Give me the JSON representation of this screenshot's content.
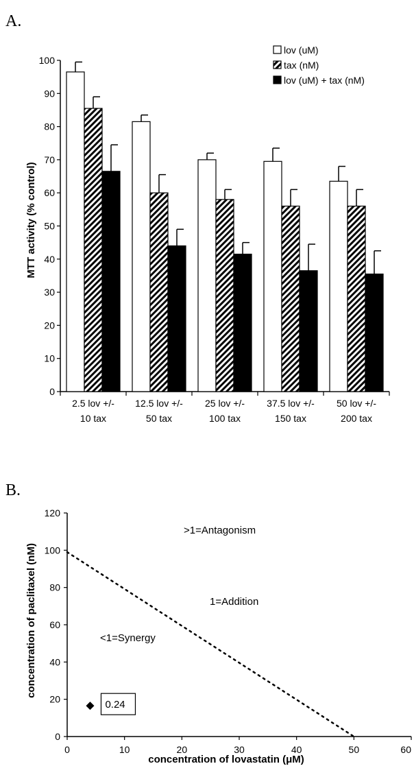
{
  "chart_data": [
    {
      "panel": "A.",
      "type": "bar",
      "ylabel": "MTT activity (% control)",
      "ylim": [
        0,
        100
      ],
      "yticks": [
        0,
        10,
        20,
        30,
        40,
        50,
        60,
        70,
        80,
        90,
        100
      ],
      "categories": [
        [
          "2.5 lov  +/-",
          "10 tax"
        ],
        [
          "12.5 lov +/-",
          "50 tax"
        ],
        [
          "25 lov +/-",
          "100 tax"
        ],
        [
          "37.5 lov +/-",
          "150 tax"
        ],
        [
          "50 lov +/-",
          "200 tax"
        ]
      ],
      "legend_position": "top-right",
      "series": [
        {
          "name": "lov (uM)",
          "fill": "white",
          "values": [
            96.5,
            81.5,
            70,
            69.5,
            63.5
          ],
          "errors": [
            3,
            2,
            2,
            4,
            4.5
          ]
        },
        {
          "name": "tax (nM)",
          "fill": "hatch",
          "values": [
            85.5,
            60,
            58,
            56,
            56
          ],
          "errors": [
            3.5,
            5.5,
            3,
            5,
            5
          ]
        },
        {
          "name": "lov (uM) + tax (nM)",
          "fill": "black",
          "values": [
            66.5,
            44,
            41.5,
            36.5,
            35.5
          ],
          "errors": [
            8,
            5,
            3.5,
            8,
            7
          ]
        }
      ]
    },
    {
      "panel": "B.",
      "type": "scatter",
      "xlabel": "concentration of lovastatin (μM)",
      "ylabel": "concentration of paclitaxel (nM)",
      "xlim": [
        0,
        60
      ],
      "ylim": [
        0,
        120
      ],
      "xticks": [
        0,
        10,
        20,
        30,
        40,
        50,
        60
      ],
      "yticks": [
        0,
        20,
        40,
        60,
        80,
        100,
        120
      ],
      "line": {
        "style": "dotted",
        "points": [
          [
            0,
            99
          ],
          [
            50,
            0
          ]
        ]
      },
      "points": [
        {
          "x": 4,
          "y": 16.5,
          "marker": "diamond"
        }
      ],
      "point_label": "0.24",
      "region_labels": {
        "antagonism": ">1=Antagonism",
        "addition": "1=Addition",
        "synergy": "<1=Synergy"
      }
    }
  ]
}
